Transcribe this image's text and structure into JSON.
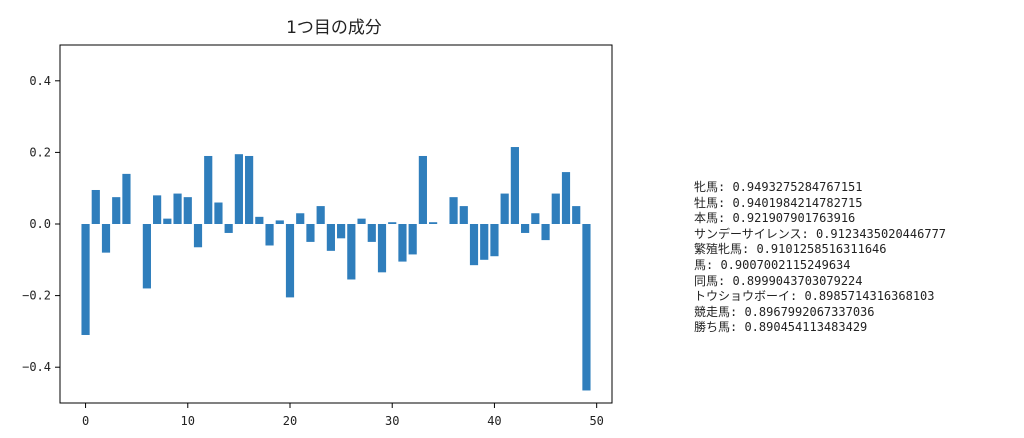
{
  "chart_data": {
    "type": "bar",
    "title": "1つ目の成分",
    "xlabel": "",
    "ylabel": "",
    "xlim": [
      -2.5,
      51.5
    ],
    "ylim": [
      -0.5,
      0.5
    ],
    "xticks": [
      "0",
      "10",
      "20",
      "30",
      "40",
      "50"
    ],
    "yticks": [
      "0.4",
      "0.2",
      "0.0",
      "−0.2",
      "−0.4"
    ],
    "color": "#2f7ebc",
    "grid": false,
    "x": [
      0,
      1,
      2,
      3,
      4,
      5,
      6,
      7,
      8,
      9,
      10,
      11,
      12,
      13,
      14,
      15,
      16,
      17,
      18,
      19,
      20,
      21,
      22,
      23,
      24,
      25,
      26,
      27,
      28,
      29,
      30,
      31,
      32,
      33,
      34,
      35,
      36,
      37,
      38,
      39,
      40,
      41,
      42,
      43,
      44,
      45,
      46,
      47,
      48,
      49
    ],
    "values": [
      -0.31,
      0.095,
      -0.08,
      0.075,
      0.14,
      0.0,
      -0.18,
      0.08,
      0.015,
      0.085,
      0.075,
      -0.065,
      0.19,
      0.06,
      -0.025,
      0.195,
      0.19,
      0.02,
      -0.06,
      0.01,
      -0.205,
      0.03,
      -0.05,
      0.05,
      -0.075,
      -0.04,
      -0.155,
      0.015,
      -0.05,
      -0.135,
      0.005,
      -0.105,
      -0.085,
      0.19,
      0.005,
      0.0,
      0.075,
      0.05,
      -0.115,
      -0.1,
      -0.09,
      0.085,
      0.215,
      -0.025,
      0.03,
      -0.045,
      0.085,
      0.145,
      0.05,
      -0.465
    ]
  },
  "similar_words": [
    "牝馬: 0.9493275284767151",
    "牡馬: 0.9401984214782715",
    "本馬: 0.921907901763916",
    "サンデーサイレンス: 0.9123435020446777",
    "繁殖牝馬: 0.9101258516311646",
    "馬: 0.9007002115249634",
    "同馬: 0.8999043703079224",
    "トウショウボーイ: 0.8985714316368103",
    "競走馬: 0.8967992067337036",
    "勝ち馬: 0.890454113483429"
  ]
}
